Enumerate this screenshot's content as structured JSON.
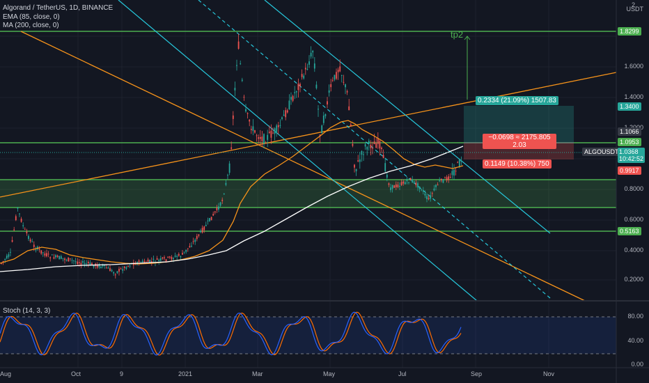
{
  "legend": {
    "symbol": "Algorand / TetherUS, 1D, BINANCE",
    "ema": "EMA (85, close, 0)",
    "ma": "MA (200, close, 0)",
    "stoch": "Stoch (14, 3, 3)"
  },
  "price_axis": {
    "currency": "USDT",
    "top_tick": "2",
    "ticks": [
      "1.6000",
      "1.4000",
      "1.2000",
      "0.8000",
      "0.6000",
      "0.4000",
      "0.2000"
    ]
  },
  "stoch_axis": {
    "ticks": [
      "80.00",
      "40.00",
      "0.00"
    ]
  },
  "time_axis": {
    "ticks": [
      "Aug",
      "Oct",
      "9",
      "2021",
      "Mar",
      "May",
      "Jul",
      "Sep",
      "Nov"
    ]
  },
  "badges": {
    "level_1": "1.8299",
    "target": "1.3400",
    "level_2": "1.1066",
    "level_3": "1.0953",
    "symbol_tag": "ALGOUSDT",
    "price": "1.0368",
    "countdown": "10:42:52",
    "stop": "0.9917",
    "level_4": "0.5163"
  },
  "annotations": {
    "tp_label": "tp2",
    "profit_box": "0.2334 (21.09%) 1507.83",
    "risk_line1": "−0.0698 ≈ 2175.805",
    "risk_line2": "2.03",
    "loss_box": "0.1149 (10.38%) 750"
  },
  "colors": {
    "background": "#131722",
    "green_level": "#4caf50",
    "orange": "#f7931a",
    "cyan_channel": "#26c6da",
    "bull": "#26a69a",
    "bear": "#ef5350",
    "ma200": "#ffffff",
    "stoch_k": "#2962ff",
    "stoch_d": "#ff6d00"
  }
}
